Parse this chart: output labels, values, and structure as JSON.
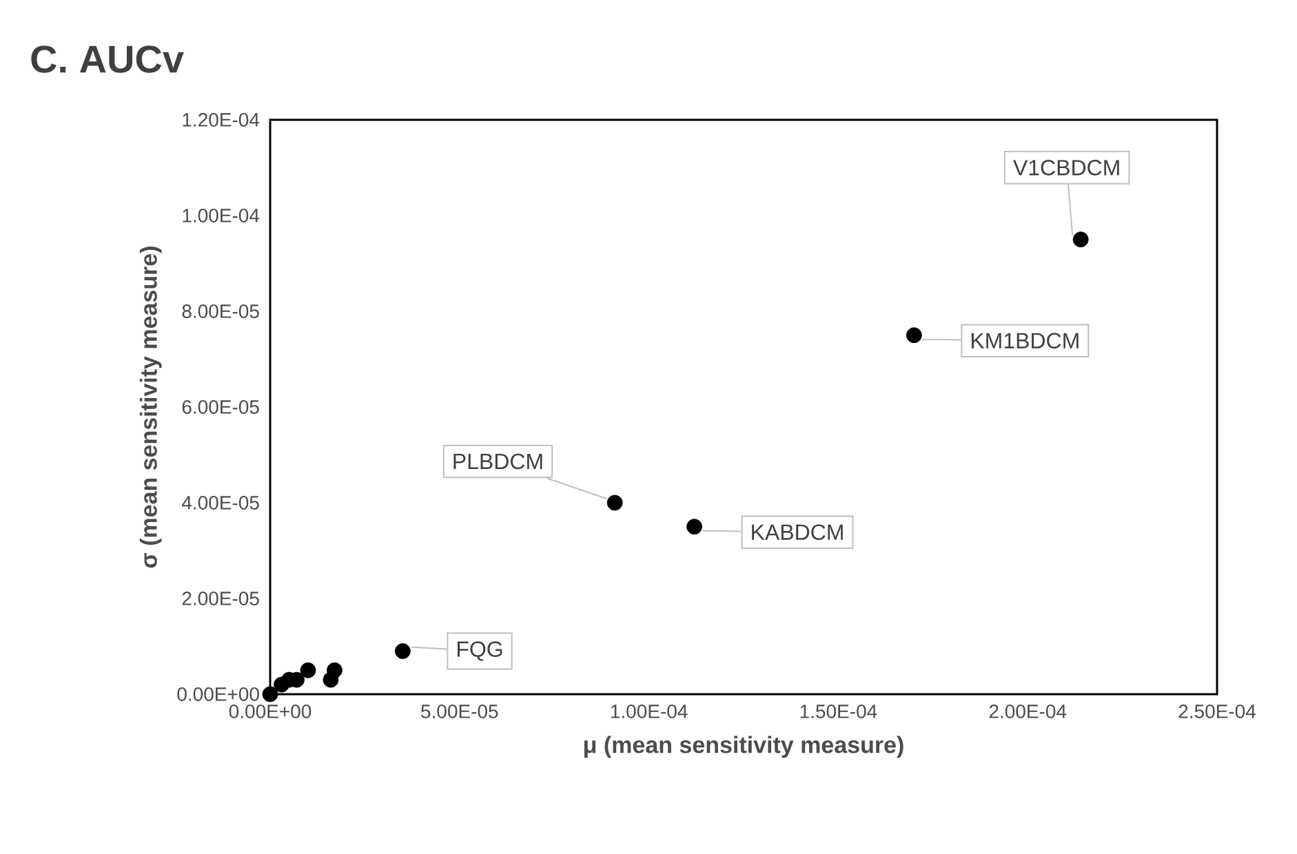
{
  "chart_data": {
    "type": "scatter",
    "title": "C.  AUCv",
    "xlabel": "μ (mean sensitivity measure)",
    "ylabel": "σ (mean sensitivity measure)",
    "x": [
      0,
      3e-06,
      5e-06,
      7e-06,
      1e-05,
      1.6e-05,
      1.7e-05,
      3.5e-05,
      9.1e-05,
      0.000112,
      0.00017,
      0.000214
    ],
    "series": [
      {
        "color": "#000000",
        "values": [
          0,
          2e-06,
          3e-06,
          3e-06,
          5e-06,
          3e-06,
          5e-06,
          9e-06,
          4e-05,
          3.5e-05,
          7.5e-05,
          9.5e-05
        ]
      }
    ],
    "grid": false,
    "xlim": [
      0,
      0.00025
    ],
    "ylim": [
      0,
      0.00012
    ],
    "xticks": [
      {
        "value": 0,
        "label": "0.00E+00"
      },
      {
        "value": 5e-05,
        "label": "5.00E-05"
      },
      {
        "value": 0.0001,
        "label": "1.00E-04"
      },
      {
        "value": 0.00015,
        "label": "1.50E-04"
      },
      {
        "value": 0.0002,
        "label": "2.00E-04"
      },
      {
        "value": 0.00025,
        "label": "2.50E-04"
      }
    ],
    "yticks": [
      {
        "value": 0,
        "label": "0.00E+00"
      },
      {
        "value": 2e-05,
        "label": "2.00E-05"
      },
      {
        "value": 4e-05,
        "label": "4.00E-05"
      },
      {
        "value": 6e-05,
        "label": "6.00E-05"
      },
      {
        "value": 8e-05,
        "label": "8.00E-05"
      },
      {
        "value": 0.0001,
        "label": "1.00E-04"
      },
      {
        "value": 0.00012,
        "label": "1.20E-04"
      }
    ],
    "annotations": [
      {
        "text": "FQG",
        "x": 3.5e-05,
        "y": 9e-06
      },
      {
        "text": "PLBDCM",
        "x": 9.1e-05,
        "y": 4e-05
      },
      {
        "text": "KABDCM",
        "x": 0.000112,
        "y": 3.5e-05
      },
      {
        "text": "KM1BDCM",
        "x": 0.00017,
        "y": 7.5e-05
      },
      {
        "text": "V1CBDCM",
        "x": 0.000214,
        "y": 9.5e-05
      }
    ]
  }
}
